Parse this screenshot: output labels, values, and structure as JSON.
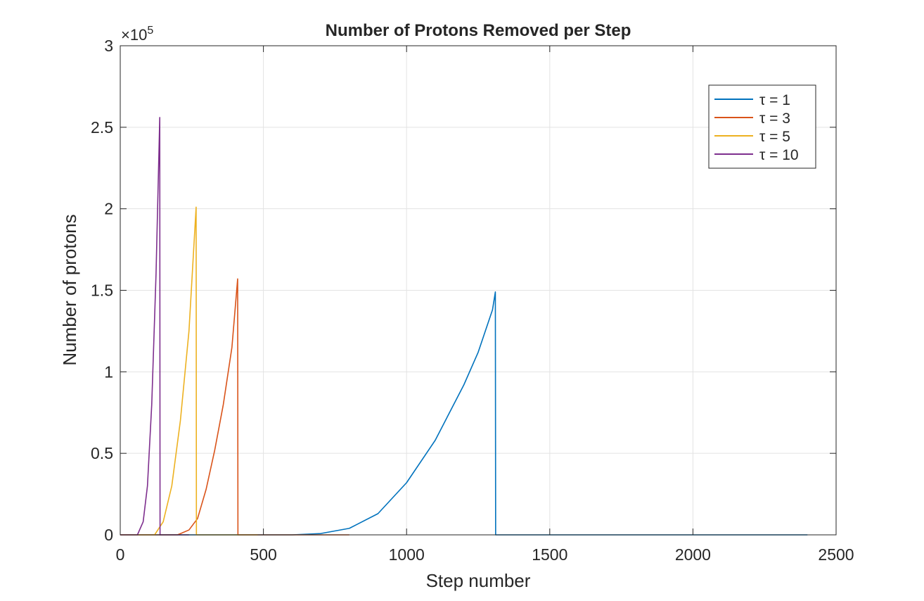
{
  "chart_data": {
    "type": "line",
    "title": "Number of Protons Removed per Step",
    "xlabel": "Step number",
    "ylabel": "Number of protons",
    "y_exponent_label": "×10",
    "y_exponent_power": "5",
    "xlim": [
      0,
      2500
    ],
    "ylim": [
      0,
      300000
    ],
    "y_display_scale": 100000,
    "xticks": [
      0,
      500,
      1000,
      1500,
      2000,
      2500
    ],
    "xtick_labels": [
      "0",
      "500",
      "1000",
      "1500",
      "2000",
      "2500"
    ],
    "yticks": [
      0,
      50000,
      100000,
      150000,
      200000,
      250000,
      300000
    ],
    "ytick_labels": [
      "0",
      "0.5",
      "1",
      "1.5",
      "2",
      "2.5",
      "3"
    ],
    "grid": true,
    "legend_position": "top-right",
    "series": [
      {
        "name": "τ = 1",
        "color": "#0072BD",
        "points": [
          [
            0,
            0
          ],
          [
            600,
            0
          ],
          [
            700,
            800
          ],
          [
            800,
            4000
          ],
          [
            900,
            13000
          ],
          [
            1000,
            32000
          ],
          [
            1100,
            58000
          ],
          [
            1200,
            92000
          ],
          [
            1250,
            112000
          ],
          [
            1300,
            138000
          ],
          [
            1310,
            149000
          ],
          [
            1311,
            0
          ],
          [
            2400,
            0
          ]
        ]
      },
      {
        "name": "τ = 3",
        "color": "#D95319",
        "points": [
          [
            0,
            0
          ],
          [
            200,
            0
          ],
          [
            240,
            3000
          ],
          [
            270,
            10000
          ],
          [
            300,
            28000
          ],
          [
            330,
            52000
          ],
          [
            360,
            80000
          ],
          [
            390,
            115000
          ],
          [
            410,
            157000
          ],
          [
            411,
            0
          ],
          [
            800,
            0
          ]
        ]
      },
      {
        "name": "τ = 5",
        "color": "#EDB120",
        "points": [
          [
            0,
            0
          ],
          [
            120,
            0
          ],
          [
            150,
            8000
          ],
          [
            180,
            30000
          ],
          [
            210,
            70000
          ],
          [
            240,
            125000
          ],
          [
            265,
            201000
          ],
          [
            266,
            0
          ],
          [
            480,
            0
          ]
        ]
      },
      {
        "name": "τ = 10",
        "color": "#7E2F8E",
        "points": [
          [
            0,
            0
          ],
          [
            60,
            0
          ],
          [
            80,
            8000
          ],
          [
            95,
            30000
          ],
          [
            110,
            80000
          ],
          [
            125,
            160000
          ],
          [
            138,
            256000
          ],
          [
            139,
            0
          ],
          [
            240,
            0
          ]
        ]
      }
    ]
  }
}
